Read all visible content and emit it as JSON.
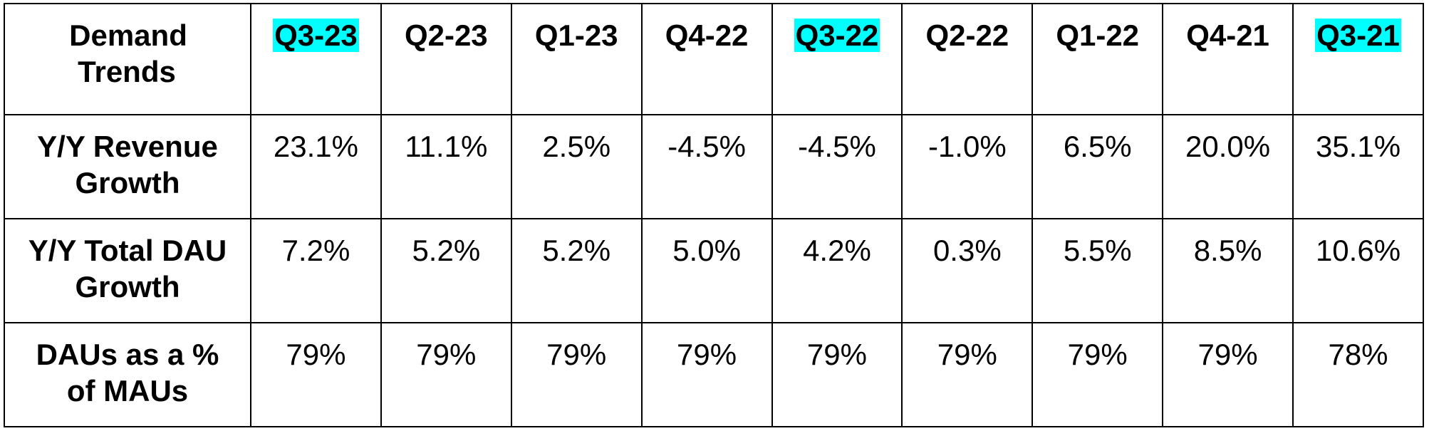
{
  "table": {
    "header": [
      "Demand Trends",
      "Q3-23",
      "Q2-23",
      "Q1-23",
      "Q4-22",
      "Q3-22",
      "Q2-22",
      "Q1-22",
      "Q4-21",
      "Q3-21"
    ],
    "highlight": [
      false,
      true,
      false,
      false,
      false,
      true,
      false,
      false,
      false,
      true
    ],
    "highlight_color": "#00ffff",
    "rows": [
      [
        "Y/Y Revenue Growth",
        "23.1%",
        "11.1%",
        "2.5%",
        "-4.5%",
        "-4.5%",
        "-1.0%",
        "6.5%",
        "20.0%",
        "35.1%"
      ],
      [
        "Y/Y Total DAU Growth",
        "7.2%",
        "5.2%",
        "5.2%",
        "5.0%",
        "4.2%",
        "0.3%",
        "5.5%",
        "8.5%",
        "10.6%"
      ],
      [
        "DAUs as a % of MAUs",
        "79%",
        "79%",
        "79%",
        "79%",
        "79%",
        "79%",
        "79%",
        "79%",
        "78%"
      ]
    ]
  }
}
